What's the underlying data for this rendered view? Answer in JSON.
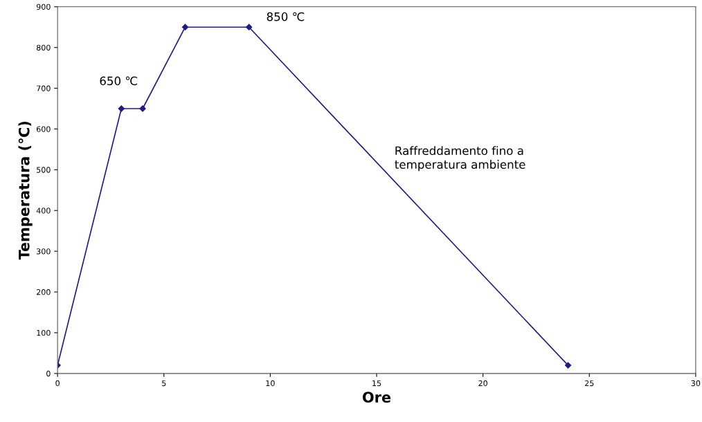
{
  "chart_data": {
    "type": "line",
    "xlabel": "Ore",
    "ylabel": "Temperatura (℃)",
    "x": [
      0,
      3,
      4,
      6,
      9,
      24
    ],
    "series": [
      {
        "color": "#1c1c8c",
        "values": [
          20,
          650,
          650,
          850,
          850,
          20
        ]
      }
    ],
    "xlim": [
      0,
      30
    ],
    "xticks": [
      0,
      5,
      10,
      15,
      20,
      25,
      30
    ],
    "ylim": [
      0,
      900
    ],
    "yticks": [
      0,
      100,
      200,
      300,
      400,
      500,
      600,
      700,
      800,
      900
    ],
    "grid": false,
    "legend": false,
    "marker": "diamond",
    "line_style": "solid",
    "annotations": [
      {
        "text": "650 ℃",
        "x": 3.5,
        "y": 650
      },
      {
        "text": "850 ℃",
        "x": 9,
        "y": 850
      },
      "Raffreddamento fino a\ntemperatura ambiente"
    ]
  }
}
